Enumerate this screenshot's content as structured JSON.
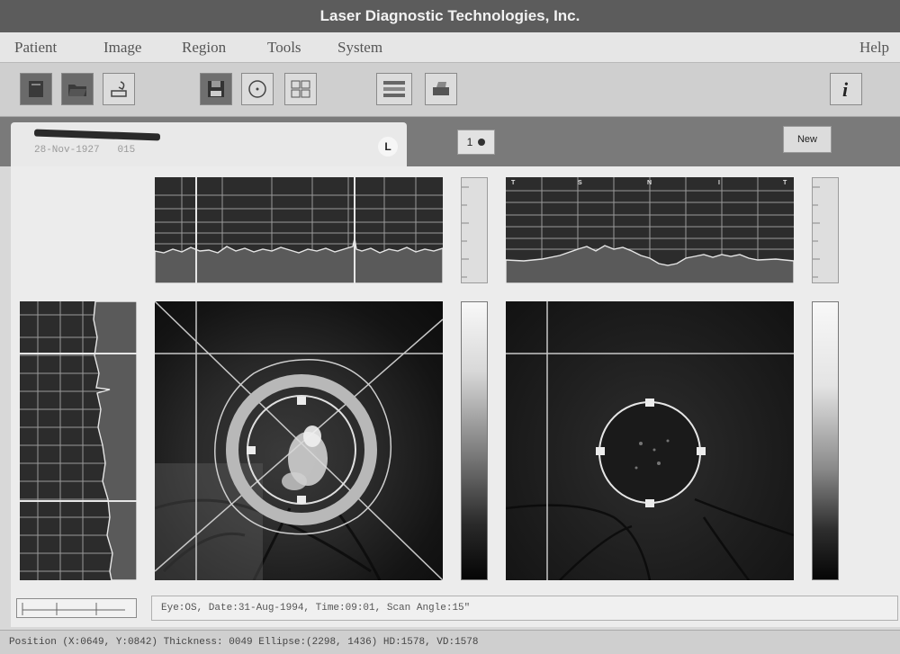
{
  "window": {
    "title": "Laser Diagnostic Technologies, Inc."
  },
  "menu": {
    "items": [
      "Patient",
      "Image",
      "Region",
      "Tools",
      "System"
    ],
    "help": "Help"
  },
  "toolbar": {
    "buttons": [
      {
        "name": "new-patient",
        "icon": "new-file-icon"
      },
      {
        "name": "open",
        "icon": "open-folder-icon"
      },
      {
        "name": "import",
        "icon": "import-icon"
      },
      {
        "name": "save",
        "icon": "save-disk-icon"
      },
      {
        "name": "center",
        "icon": "target-icon"
      },
      {
        "name": "compare",
        "icon": "compare-icon"
      },
      {
        "name": "normal-limits",
        "icon": "limits-icon"
      },
      {
        "name": "print",
        "icon": "printer-icon"
      },
      {
        "name": "info",
        "icon": "info-icon",
        "label": "i"
      }
    ]
  },
  "patient": {
    "dob": "28-Nov-1927",
    "id": "015",
    "eye": "L"
  },
  "scan_indicator": {
    "label": "1"
  },
  "new_button": {
    "label": "New"
  },
  "tsnit_labels": [
    "T",
    "S",
    "N",
    "I",
    "T"
  ],
  "scan_info": "Eye:OS, Date:31-Aug-1994, Time:09:01, Scan Angle:15\"",
  "status": "Position (X:0649, Y:0842) Thickness: 0049  Ellipse:(2298, 1436) HD:1578, VD:1578",
  "colors": {
    "title_bg": "#5c5c5c",
    "menu_bg": "#e6e6e6",
    "tab_bg": "#7a7a7a",
    "overlay_line": "#c8c8c8"
  }
}
